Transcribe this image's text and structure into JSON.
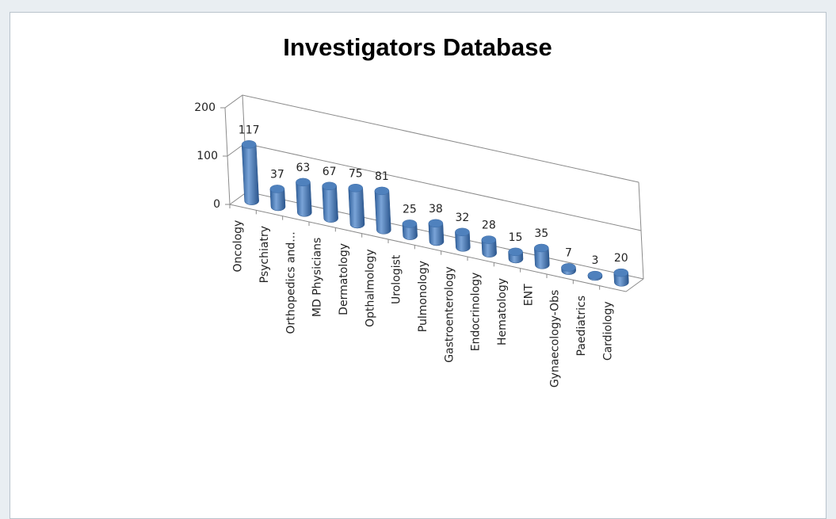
{
  "chart_data": {
    "type": "bar3d",
    "title": "Investigators Database",
    "categories": [
      "Oncology",
      "Psychiatry",
      "Orthopedics and...",
      "MD Physicians",
      "Dermatology",
      "Opthalmology",
      "Urologist",
      "Pulmonology",
      "Gastroenterology",
      "Endocrinology",
      "Hematology",
      "ENT",
      "Gynaecology-Obs",
      "Paediatrics",
      "Cardiology"
    ],
    "values": [
      117,
      37,
      63,
      67,
      75,
      81,
      25,
      38,
      32,
      28,
      15,
      35,
      7,
      3,
      20
    ],
    "color": "#4f81bd",
    "ylim": [
      0,
      200
    ],
    "yticks": [
      0,
      100,
      200
    ],
    "grid": true
  }
}
